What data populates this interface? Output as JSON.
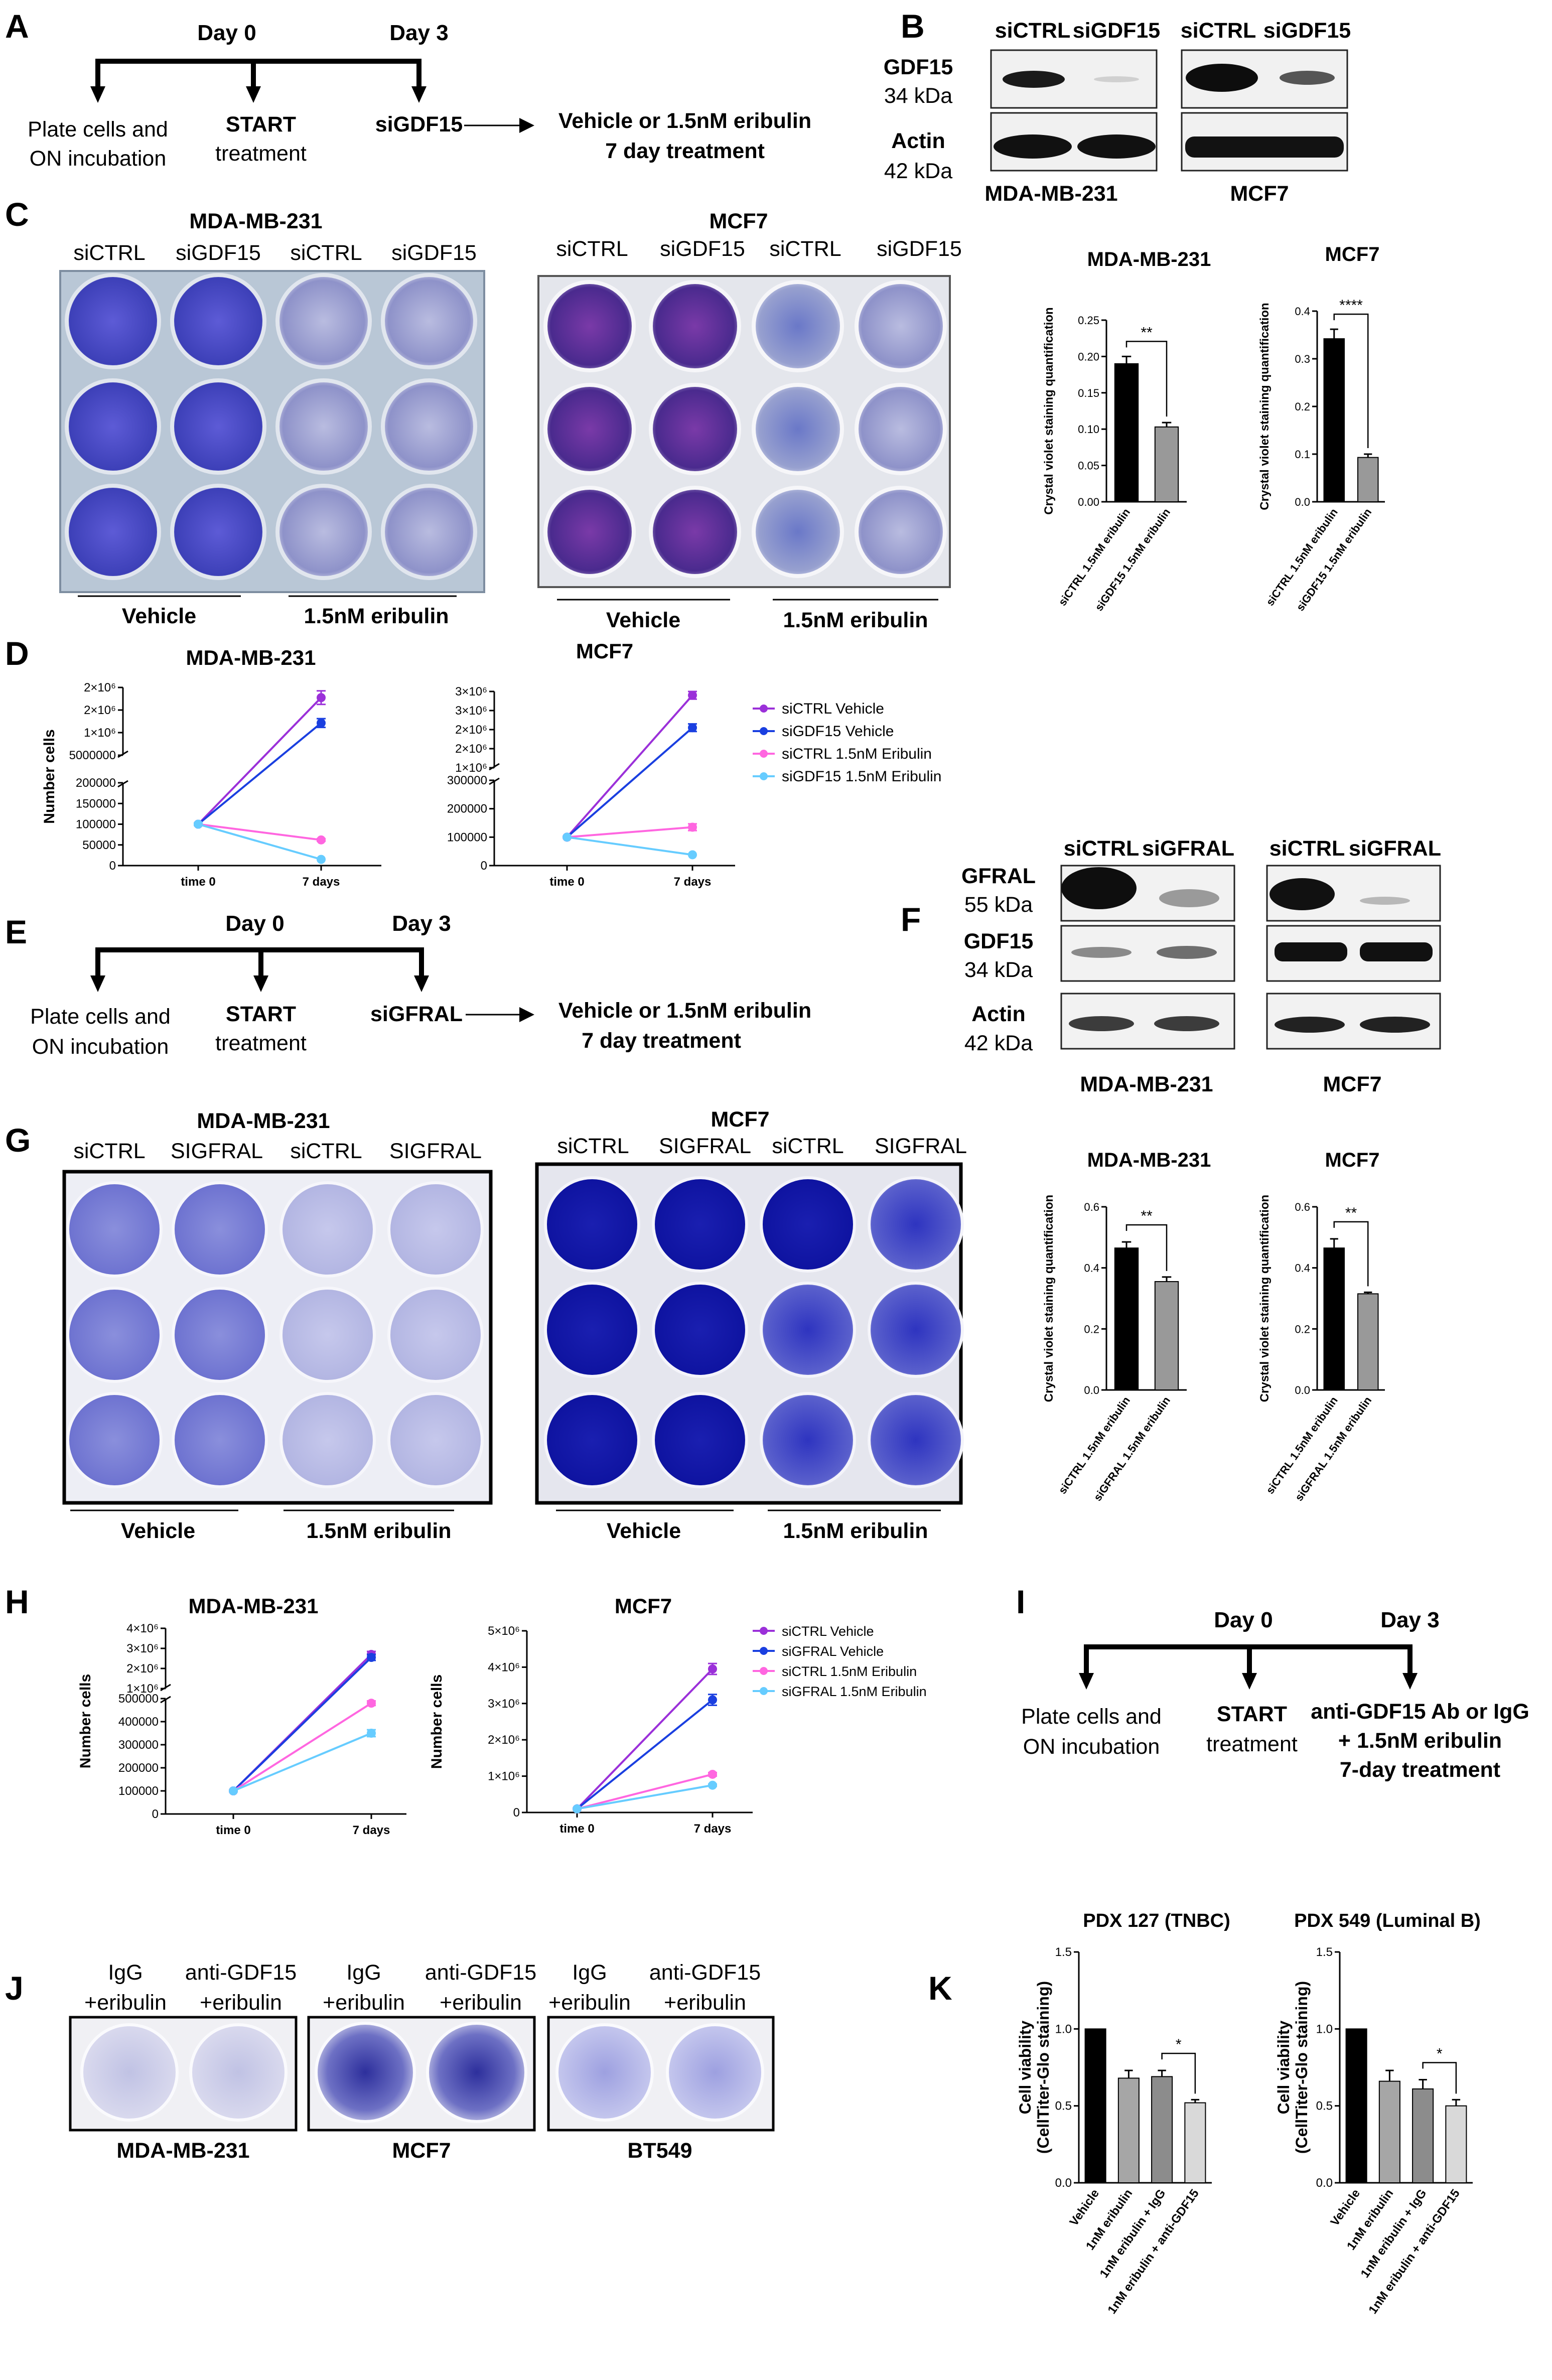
{
  "panels": {
    "A": "A",
    "B": "B",
    "C": "C",
    "D": "D",
    "E": "E",
    "F": "F",
    "G": "G",
    "H": "H",
    "I": "I",
    "J": "J",
    "K": "K"
  },
  "timeline_A": {
    "day0": "Day 0",
    "day3": "Day 3",
    "step1a": "Plate cells and",
    "step1b": "ON incubation",
    "step2a": "START",
    "step2b": "treatment",
    "step3": "siGDF15",
    "result1": "Vehicle or 1.5nM eribulin",
    "result2": "7 day treatment"
  },
  "blot_B": {
    "lanes": [
      "siCTRL",
      "siGDF15",
      "siCTRL",
      "siGDF15"
    ],
    "row1": "GDF15",
    "row1_kda": "34 kDa",
    "row2": "Actin",
    "row2_kda": "42 kDa",
    "cell1": "MDA-MB-231",
    "cell2": "MCF7"
  },
  "plates_C": {
    "cell1": "MDA-MB-231",
    "cell2": "MCF7",
    "cols": [
      "siCTRL",
      "siGDF15",
      "siCTRL",
      "siGDF15"
    ],
    "group1": "Vehicle",
    "group2": "1.5nM eribulin"
  },
  "plates_G": {
    "cell1": "MDA-MB-231",
    "cell2": "MCF7",
    "cols": [
      "siCTRL",
      "SIGFRAL",
      "siCTRL",
      "SIGFRAL"
    ],
    "group1": "Vehicle",
    "group2": "1.5nM eribulin"
  },
  "timeline_E": {
    "day0": "Day 0",
    "day3": "Day 3",
    "step1a": "Plate cells and",
    "step1b": "ON incubation",
    "step2a": "START",
    "step2b": "treatment",
    "step3": "siGFRAL",
    "result1": "Vehicle or 1.5nM eribulin",
    "result2": "7 day treatment"
  },
  "blot_F": {
    "lanes": [
      "siCTRL",
      "siGFRAL",
      "siCTRL",
      "siGFRAL"
    ],
    "row1": "GFRAL",
    "row1_kda": "55 kDa",
    "row2": "GDF15",
    "row2_kda": "34 kDa",
    "row3": "Actin",
    "row3_kda": "42 kDa",
    "cell1": "MDA-MB-231",
    "cell2": "MCF7"
  },
  "timeline_I": {
    "day0": "Day 0",
    "day3": "Day 3",
    "step1a": "Plate cells and",
    "step1b": "ON incubation",
    "step2a": "START",
    "step2b": "treatment",
    "step3a": "anti-GDF15 Ab or IgG",
    "step3b": "+ 1.5nM eribulin",
    "step3c": "7-day treatment"
  },
  "plates_J": {
    "labels": [
      [
        "IgG",
        "+eribulin"
      ],
      [
        "anti-GDF15",
        "+eribulin"
      ],
      [
        "IgG",
        "+eribulin"
      ],
      [
        "anti-GDF15",
        "+eribulin"
      ],
      [
        "IgG",
        "+eribulin"
      ],
      [
        "anti-GDF15",
        "+eribulin"
      ]
    ],
    "cells": [
      "MDA-MB-231",
      "MCF7",
      "BT549"
    ]
  },
  "chart_data": [
    {
      "id": "C1",
      "type": "bar",
      "title": "MDA-MB-231",
      "ylabel": "Crystal violet staining quantification",
      "categories": [
        "siCTRL 1.5nM eribulin",
        "siGDF15 1.5nM eribulin"
      ],
      "values": [
        0.19,
        0.103
      ],
      "errors": [
        0.01,
        0.006
      ],
      "colors": [
        "#000000",
        "#999999"
      ],
      "ylim": [
        0,
        0.25
      ],
      "ticks": [
        "0.00",
        "0.05",
        "0.10",
        "0.15",
        "0.20",
        "0.25"
      ],
      "sig": "**"
    },
    {
      "id": "C2",
      "type": "bar",
      "title": "MCF7",
      "ylabel": "Crystal violet staining quantification",
      "categories": [
        "siCTRL 1.5nM eribulin",
        "siGDF15 1.5nM eribulin"
      ],
      "values": [
        0.342,
        0.093
      ],
      "errors": [
        0.02,
        0.007
      ],
      "colors": [
        "#000000",
        "#999999"
      ],
      "ylim": [
        0,
        0.4
      ],
      "ticks": [
        "0.0",
        "0.1",
        "0.2",
        "0.3",
        "0.4"
      ],
      "sig": "****"
    },
    {
      "id": "G1",
      "type": "bar",
      "title": "MDA-MB-231",
      "ylabel": "Crystal violet staining quantification",
      "categories": [
        "siCTRL 1.5nM eribulin",
        "siGFRAL 1.5nM eribulin"
      ],
      "values": [
        0.465,
        0.355
      ],
      "errors": [
        0.02,
        0.015
      ],
      "colors": [
        "#000000",
        "#999999"
      ],
      "ylim": [
        0,
        0.6
      ],
      "ticks": [
        "0.0",
        "0.2",
        "0.4",
        "0.6"
      ],
      "sig": "**"
    },
    {
      "id": "G2",
      "type": "bar",
      "title": "MCF7",
      "ylabel": "Crystal violet staining quantification",
      "categories": [
        "siCTRL 1.5nM eribulin",
        "siGFRAL 1.5nM eribulin"
      ],
      "values": [
        0.465,
        0.315
      ],
      "errors": [
        0.03,
        0.005
      ],
      "colors": [
        "#000000",
        "#999999"
      ],
      "ylim": [
        0,
        0.6
      ],
      "ticks": [
        "0.0",
        "0.2",
        "0.4",
        "0.6"
      ],
      "sig": "**"
    },
    {
      "id": "D1",
      "type": "line",
      "title": "MDA-MB-231",
      "ylabel": "Number cells",
      "x": [
        "time 0",
        "7 days"
      ],
      "broken_axis": true,
      "upper_ticks": [
        "5000000",
        "1×10⁶",
        "2×10⁶",
        "2×10⁶"
      ],
      "upper_range": [
        500000,
        2500000
      ],
      "lower_ticks": [
        "0",
        "50000",
        "100000",
        "150000",
        "200000"
      ],
      "lower_range": [
        0,
        200000
      ],
      "series": [
        {
          "name": "siCTRL Vehicle",
          "color": "#9b30d9",
          "values": [
            100000,
            2200000
          ],
          "error": [
            3000,
            200000
          ]
        },
        {
          "name": "siGDF15 Vehicle",
          "color": "#1a3fe0",
          "values": [
            100000,
            1450000
          ],
          "error": [
            3000,
            130000
          ]
        },
        {
          "name": "siCTRL 1.5nM Eribulin",
          "color": "#ff66e0",
          "values": [
            100000,
            62000
          ],
          "error": [
            3000,
            3000
          ]
        },
        {
          "name": "siGDF15 1.5nM Eribulin",
          "color": "#66ccff",
          "values": [
            100000,
            15000
          ],
          "error": [
            3000,
            2000
          ]
        }
      ]
    },
    {
      "id": "D2",
      "type": "line",
      "title": "MCF7",
      "ylabel": "",
      "x": [
        "time 0",
        "7 days"
      ],
      "broken_axis": true,
      "upper_ticks": [
        "1×10⁶",
        "2×10⁶",
        "2×10⁶",
        "3×10⁶",
        "3×10⁶"
      ],
      "upper_range": [
        1000000,
        3000000
      ],
      "lower_ticks": [
        "0",
        "100000",
        "200000",
        "300000"
      ],
      "lower_range": [
        0,
        300000
      ],
      "series": [
        {
          "name": "siCTRL Vehicle",
          "color": "#9b30d9",
          "values": [
            100000,
            2900000
          ],
          "error": [
            3000,
            100000
          ]
        },
        {
          "name": "siGDF15 Vehicle",
          "color": "#1a3fe0",
          "values": [
            100000,
            2050000
          ],
          "error": [
            3000,
            100000
          ]
        },
        {
          "name": "siCTRL 1.5nM Eribulin",
          "color": "#ff66e0",
          "values": [
            100000,
            135000
          ],
          "error": [
            3000,
            12000
          ]
        },
        {
          "name": "siGDF15 1.5nM Eribulin",
          "color": "#66ccff",
          "values": [
            100000,
            38000
          ],
          "error": [
            3000,
            2000
          ]
        }
      ]
    },
    {
      "id": "H1",
      "type": "line",
      "title": "MDA-MB-231",
      "ylabel": "Number cells",
      "x": [
        "time 0",
        "7 days"
      ],
      "broken_axis": true,
      "upper_ticks": [
        "1×10⁶",
        "2×10⁶",
        "3×10⁶",
        "4×10⁶"
      ],
      "upper_range": [
        1000000,
        4000000
      ],
      "lower_ticks": [
        "0",
        "100000",
        "200000",
        "300000",
        "400000",
        "500000"
      ],
      "lower_range": [
        0,
        500000
      ],
      "series": [
        {
          "name": "siCTRL Vehicle",
          "color": "#9b30d9",
          "values": [
            100000,
            2700000
          ],
          "error": [
            3000,
            150000
          ]
        },
        {
          "name": "siGFRAL Vehicle",
          "color": "#1a3fe0",
          "values": [
            100000,
            2550000
          ],
          "error": [
            3000,
            150000
          ]
        },
        {
          "name": "siCTRL 1.5nM Eribulin",
          "color": "#ff66e0",
          "values": [
            100000,
            480000
          ],
          "error": [
            3000,
            10000
          ]
        },
        {
          "name": "siGFRAL 1.5nM Eribulin",
          "color": "#66ccff",
          "values": [
            100000,
            350000
          ],
          "error": [
            3000,
            15000
          ]
        }
      ]
    },
    {
      "id": "H2",
      "type": "line",
      "title": "MCF7",
      "ylabel": "Number cells",
      "x": [
        "time 0",
        "7 days"
      ],
      "broken_axis": false,
      "ticks": [
        "0",
        "1×10⁶",
        "2×10⁶",
        "3×10⁶",
        "4×10⁶",
        "5×10⁶"
      ],
      "ylim": [
        0,
        5000000
      ],
      "series": [
        {
          "name": "siCTRL Vehicle",
          "color": "#9b30d9",
          "values": [
            100000,
            3950000
          ],
          "error": [
            3000,
            150000
          ]
        },
        {
          "name": "siGFRAL Vehicle",
          "color": "#1a3fe0",
          "values": [
            100000,
            3100000
          ],
          "error": [
            3000,
            150000
          ]
        },
        {
          "name": "siCTRL 1.5nM Eribulin",
          "color": "#ff66e0",
          "values": [
            100000,
            1050000
          ],
          "error": [
            3000,
            50000
          ]
        },
        {
          "name": "siGFRAL 1.5nM Eribulin",
          "color": "#66ccff",
          "values": [
            100000,
            750000
          ],
          "error": [
            3000,
            30000
          ]
        }
      ]
    },
    {
      "id": "K1",
      "type": "bar",
      "title": "PDX 127 (TNBC)",
      "ylabel1": "Cell viability",
      "ylabel2": "(CellTiter-Glo staining)",
      "categories": [
        "Vehicle",
        "1nM eribulin",
        "1nM eribulin + IgG",
        "1nM eribulin + anti-GDF15"
      ],
      "values": [
        1.0,
        0.68,
        0.69,
        0.52
      ],
      "errors": [
        0,
        0.05,
        0.04,
        0.02
      ],
      "colors": [
        "#000000",
        "#a6a6a6",
        "#8c8c8c",
        "#d9d9d9"
      ],
      "ylim": [
        0,
        1.5
      ],
      "ticks": [
        "0.0",
        "0.5",
        "1.0",
        "1.5"
      ],
      "sig": "*"
    },
    {
      "id": "K2",
      "type": "bar",
      "title": "PDX 549 (Luminal B)",
      "ylabel1": "Cell viability",
      "ylabel2": "(CellTiter-Glo staining)",
      "categories": [
        "Vehicle",
        "1nM eribulin",
        "1nM eribulin + IgG",
        "1nM eribulin + anti-GDF15"
      ],
      "values": [
        1.0,
        0.66,
        0.61,
        0.5
      ],
      "errors": [
        0,
        0.07,
        0.06,
        0.04
      ],
      "colors": [
        "#000000",
        "#a6a6a6",
        "#8c8c8c",
        "#d9d9d9"
      ],
      "ylim": [
        0,
        1.5
      ],
      "ticks": [
        "0.0",
        "0.5",
        "1.0",
        "1.5"
      ],
      "sig": "*"
    }
  ]
}
